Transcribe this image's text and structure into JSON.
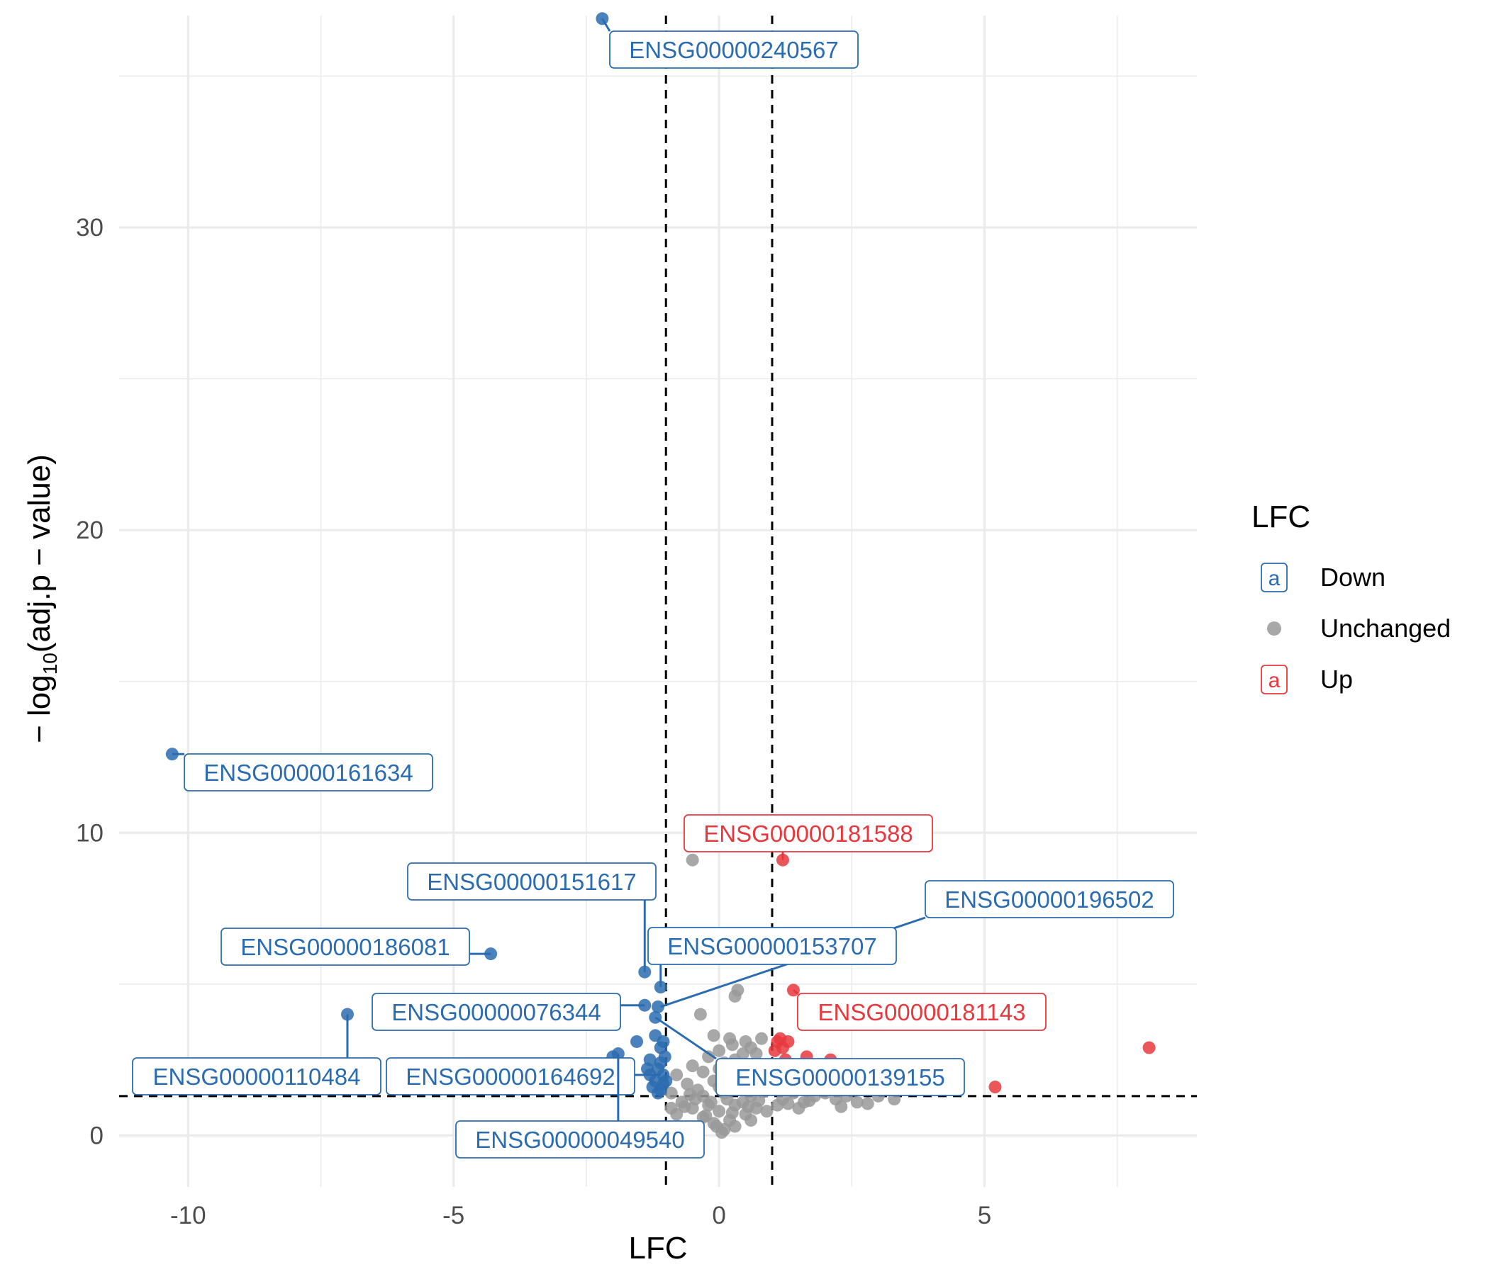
{
  "chart_data": {
    "type": "scatter",
    "xlabel": "LFC",
    "ylabel": "− log10(adj.p − value)",
    "ylabel_parts": {
      "pre": "− log",
      "sub": "10",
      "post": "(adj.p − value)"
    },
    "xlim": [
      -11.3,
      9.0
    ],
    "ylim": [
      -1.7,
      37.0
    ],
    "x_ticks": [
      -10,
      -5,
      0,
      5
    ],
    "x_tick_labels": [
      "-10",
      "-5",
      "0",
      "5"
    ],
    "y_ticks": [
      0,
      10,
      20,
      30
    ],
    "y_tick_labels": [
      "0",
      "10",
      "20",
      "30"
    ],
    "grid": true,
    "thresholds": {
      "lfc": [
        -1,
        1
      ],
      "neg_log10_p": 1.3
    },
    "colors": {
      "Down": "#2b6cb0",
      "Unchanged": "#999999",
      "Up": "#e8383d",
      "threshold_line": "#000000",
      "grid": "#ebebeb"
    },
    "legend": {
      "title": "LFC",
      "position": "right",
      "items": [
        {
          "key": "Down",
          "label": "Down",
          "glyph": "a"
        },
        {
          "key": "Unchanged",
          "label": "Unchanged",
          "glyph": ""
        },
        {
          "key": "Up",
          "label": "Up",
          "glyph": "a"
        }
      ]
    },
    "series": [
      {
        "name": "Down",
        "points": [
          [
            -2.2,
            36.9
          ],
          [
            -10.3,
            12.6
          ],
          [
            -4.3,
            6.0
          ],
          [
            -7.0,
            4.0
          ],
          [
            -1.4,
            5.4
          ],
          [
            -1.1,
            4.9
          ],
          [
            -1.4,
            4.3
          ],
          [
            -1.15,
            4.25
          ],
          [
            -1.2,
            3.9
          ],
          [
            -1.55,
            3.1
          ],
          [
            -1.2,
            3.3
          ],
          [
            -1.05,
            3.1
          ],
          [
            -1.9,
            2.7
          ],
          [
            -2.0,
            2.6
          ],
          [
            -1.3,
            2.5
          ],
          [
            -1.1,
            2.4
          ],
          [
            -1.15,
            2.2
          ],
          [
            -1.3,
            2.0
          ],
          [
            -1.05,
            2.0
          ],
          [
            -1.2,
            1.8
          ],
          [
            -1.05,
            1.7
          ],
          [
            -1.25,
            1.6
          ],
          [
            -1.1,
            1.5
          ],
          [
            -1.15,
            1.4
          ],
          [
            -1.0,
            1.8
          ],
          [
            -1.35,
            2.2
          ],
          [
            -1.02,
            2.6
          ],
          [
            -1.1,
            2.9
          ]
        ]
      },
      {
        "name": "Unchanged",
        "points": [
          [
            -0.5,
            9.1
          ],
          [
            0.35,
            4.8
          ],
          [
            0.6,
            5.9
          ],
          [
            0.3,
            4.6
          ],
          [
            -0.35,
            4.0
          ],
          [
            0.2,
            3.2
          ],
          [
            0.5,
            3.1
          ],
          [
            0.8,
            3.2
          ],
          [
            0.0,
            2.8
          ],
          [
            -0.2,
            2.6
          ],
          [
            0.7,
            2.7
          ],
          [
            0.3,
            2.5
          ],
          [
            -0.5,
            2.3
          ],
          [
            0.0,
            2.2
          ],
          [
            0.9,
            2.3
          ],
          [
            0.4,
            2.0
          ],
          [
            -0.8,
            2.0
          ],
          [
            0.2,
            1.9
          ],
          [
            -0.1,
            1.8
          ],
          [
            0.6,
            1.8
          ],
          [
            -0.6,
            1.7
          ],
          [
            0.8,
            1.6
          ],
          [
            0.0,
            1.6
          ],
          [
            -0.4,
            1.5
          ],
          [
            0.4,
            1.5
          ],
          [
            -0.9,
            1.4
          ],
          [
            0.1,
            1.4
          ],
          [
            0.6,
            1.3
          ],
          [
            -0.3,
            1.3
          ],
          [
            1.4,
            1.4
          ],
          [
            1.8,
            1.3
          ],
          [
            2.2,
            1.2
          ],
          [
            2.6,
            1.1
          ],
          [
            3.0,
            1.3
          ],
          [
            3.3,
            1.2
          ],
          [
            2.4,
            1.3
          ],
          [
            1.6,
            1.1
          ],
          [
            2.0,
            1.4
          ],
          [
            1.2,
            1.2
          ],
          [
            -0.7,
            1.1
          ],
          [
            0.3,
            1.0
          ],
          [
            -0.2,
            1.0
          ],
          [
            0.7,
            0.9
          ],
          [
            0.0,
            0.8
          ],
          [
            -0.5,
            0.9
          ],
          [
            0.5,
            0.7
          ],
          [
            0.2,
            0.5
          ],
          [
            -0.1,
            0.4
          ],
          [
            0.1,
            0.2
          ],
          [
            0.05,
            0.1
          ],
          [
            -0.05,
            0.3
          ],
          [
            0.3,
            0.3
          ],
          [
            -0.3,
            0.6
          ],
          [
            0.6,
            0.5
          ],
          [
            0.9,
            0.8
          ],
          [
            -0.8,
            0.7
          ],
          [
            1.1,
            1.0
          ],
          [
            1.5,
            0.9
          ],
          [
            -0.9,
            0.9
          ],
          [
            0.15,
            1.2
          ],
          [
            -0.15,
            1.1
          ],
          [
            0.45,
            1.1
          ],
          [
            -0.45,
            1.2
          ],
          [
            0.75,
            1.15
          ],
          [
            -0.65,
            0.95
          ],
          [
            0.25,
            0.75
          ],
          [
            -0.25,
            0.65
          ],
          [
            0.55,
            0.95
          ],
          [
            -0.55,
            1.35
          ],
          [
            0.85,
            1.45
          ],
          [
            1.3,
            1.05
          ],
          [
            1.7,
            1.15
          ],
          [
            2.3,
            0.95
          ],
          [
            2.8,
            1.05
          ],
          [
            0.1,
            2.4
          ],
          [
            -0.3,
            2.1
          ],
          [
            0.5,
            2.2
          ],
          [
            0.6,
            2.9
          ],
          [
            0.25,
            3.0
          ],
          [
            -0.1,
            3.3
          ],
          [
            0.45,
            2.7
          ]
        ]
      },
      {
        "name": "Up",
        "points": [
          [
            1.2,
            9.1
          ],
          [
            1.4,
            4.8
          ],
          [
            8.1,
            2.9
          ],
          [
            5.2,
            1.6
          ],
          [
            1.15,
            3.2
          ],
          [
            1.3,
            3.1
          ],
          [
            1.2,
            2.9
          ],
          [
            1.1,
            3.1
          ],
          [
            1.65,
            2.6
          ],
          [
            1.25,
            2.5
          ],
          [
            2.1,
            2.5
          ],
          [
            1.05,
            2.8
          ]
        ]
      }
    ],
    "labels": [
      {
        "text": "ENSG00000240567",
        "group": "Down",
        "point": [
          -2.2,
          36.9
        ]
      },
      {
        "text": "ENSG00000161634",
        "group": "Down",
        "point": [
          -10.3,
          12.6
        ]
      },
      {
        "text": "ENSG00000181588",
        "group": "Up",
        "point": [
          1.2,
          9.1
        ]
      },
      {
        "text": "ENSG00000151617",
        "group": "Down",
        "point": [
          -1.4,
          5.4
        ]
      },
      {
        "text": "ENSG00000196502",
        "group": "Down",
        "point": [
          -1.1,
          4.25
        ]
      },
      {
        "text": "ENSG00000186081",
        "group": "Down",
        "point": [
          -4.3,
          6.0
        ]
      },
      {
        "text": "ENSG00000153707",
        "group": "Down",
        "point": [
          -1.1,
          4.9
        ]
      },
      {
        "text": "ENSG00000076344",
        "group": "Down",
        "point": [
          -1.4,
          4.3
        ]
      },
      {
        "text": "ENSG00000181143",
        "group": "Up",
        "point": [
          1.4,
          4.8
        ]
      },
      {
        "text": "ENSG00000110484",
        "group": "Down",
        "point": [
          -7.0,
          4.0
        ]
      },
      {
        "text": "ENSG00000164692",
        "group": "Down",
        "point": [
          -1.1,
          2.0
        ]
      },
      {
        "text": "ENSG00000139155",
        "group": "Down",
        "point": [
          -1.2,
          3.9
        ]
      },
      {
        "text": "ENSG00000049540",
        "group": "Down",
        "point": [
          -1.9,
          2.7
        ]
      }
    ]
  }
}
